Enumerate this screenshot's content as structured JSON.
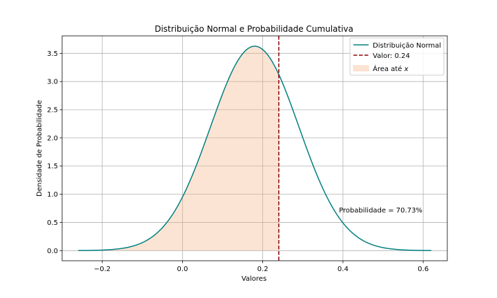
{
  "chart_data": {
    "type": "line",
    "title": "Distribuição Normal e Probabilidade Cumulativa",
    "xlabel": "Valores",
    "ylabel": "Densidade de Probabilidade",
    "xlim": [
      -0.3,
      0.66
    ],
    "ylim": [
      -0.18,
      3.81
    ],
    "grid": true,
    "legend_position": "top-right",
    "distribution": {
      "mean": 0.18,
      "std": 0.11,
      "x_start": -0.26,
      "x_end": 0.62
    },
    "x_ticks": [
      -0.2,
      0.0,
      0.2,
      0.4,
      0.6
    ],
    "x_tick_labels": [
      "−0.2",
      "0.0",
      "0.2",
      "0.4",
      "0.6"
    ],
    "y_ticks": [
      0.0,
      0.5,
      1.0,
      1.5,
      2.0,
      2.5,
      3.0,
      3.5
    ],
    "y_tick_labels": [
      "0.0",
      "0.5",
      "1.0",
      "1.5",
      "2.0",
      "2.5",
      "3.0",
      "3.5"
    ],
    "series": [
      {
        "name": "Distribuição Normal",
        "kind": "line",
        "color": "#008080"
      },
      {
        "name": "Valor: 0.24",
        "kind": "vline",
        "x": 0.24,
        "color": "#8b0000"
      },
      {
        "name_prefix": "Área até ",
        "name_var": "x",
        "kind": "area",
        "x_max": 0.24,
        "color": "#f5b285"
      }
    ],
    "annotation": {
      "text": "Probabilidade = 70.73%",
      "x": 0.39,
      "y": 0.72,
      "color": "#008080"
    }
  }
}
